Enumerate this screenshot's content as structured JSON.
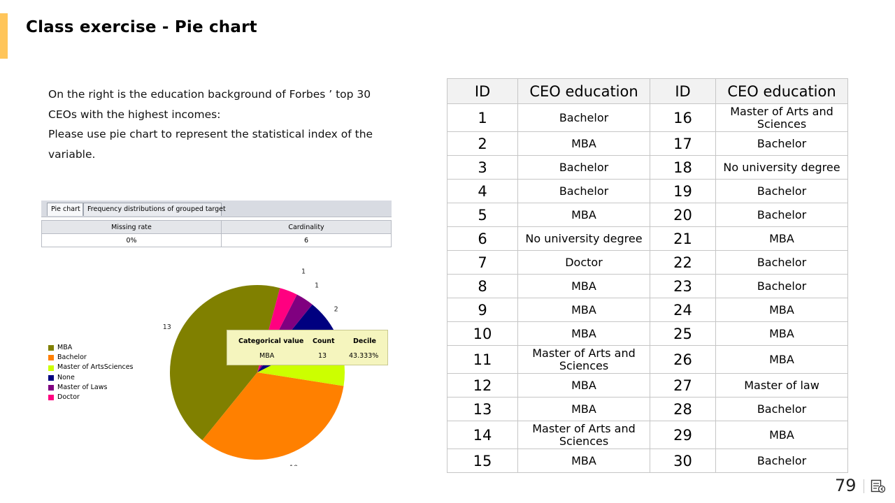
{
  "slide": {
    "title": "Class exercise - Pie chart",
    "page_number": "79",
    "accent_color": "#FFC55A",
    "nav_icon": "slide-navigation-icon"
  },
  "intro": {
    "line1": "On the right is the education background of Forbes ’ top 30 CEOs with the highest incomes:",
    "line2": "Please use pie chart to represent the statistical index of the variable."
  },
  "software": {
    "tabs": [
      "Pie chart",
      "Frequency distributions of grouped target"
    ],
    "stats": {
      "headers": [
        "Missing rate",
        "Cardinality"
      ],
      "values": [
        "0%",
        "6"
      ]
    },
    "tooltip": {
      "headers": [
        "Categorical value",
        "Count",
        "Decile"
      ],
      "values": [
        "MBA",
        "13",
        "43.333%"
      ]
    }
  },
  "chart_data": {
    "type": "pie",
    "categories": [
      "MBA",
      "Bachelor",
      "Master of ArtsSciences",
      "None",
      "Master of Laws",
      "Doctor"
    ],
    "values": [
      13,
      10,
      3,
      2,
      1,
      1
    ],
    "colors": [
      "#808000",
      "#FF8000",
      "#CCFF00",
      "#000080",
      "#800080",
      "#FF0080"
    ],
    "slice_labels": [
      "13",
      "10",
      "3",
      "2",
      "1",
      "1"
    ],
    "legend_position": "left"
  },
  "table": {
    "headers": [
      "ID",
      "CEO education",
      "ID",
      "CEO education"
    ],
    "rows": [
      [
        "1",
        "Bachelor",
        "16",
        "Master of Arts and Sciences"
      ],
      [
        "2",
        "MBA",
        "17",
        "Bachelor"
      ],
      [
        "3",
        "Bachelor",
        "18",
        "No university degree"
      ],
      [
        "4",
        "Bachelor",
        "19",
        "Bachelor"
      ],
      [
        "5",
        "MBA",
        "20",
        "Bachelor"
      ],
      [
        "6",
        "No university degree",
        "21",
        "MBA"
      ],
      [
        "7",
        "Doctor",
        "22",
        "Bachelor"
      ],
      [
        "8",
        "MBA",
        "23",
        "Bachelor"
      ],
      [
        "9",
        "MBA",
        "24",
        "MBA"
      ],
      [
        "10",
        "MBA",
        "25",
        "MBA"
      ],
      [
        "11",
        "Master of Arts and Sciences",
        "26",
        "MBA"
      ],
      [
        "12",
        "MBA",
        "27",
        "Master of law"
      ],
      [
        "13",
        "MBA",
        "28",
        "Bachelor"
      ],
      [
        "14",
        "Master of Arts and Sciences",
        "29",
        "MBA"
      ],
      [
        "15",
        "MBA",
        "30",
        "Bachelor"
      ]
    ]
  }
}
